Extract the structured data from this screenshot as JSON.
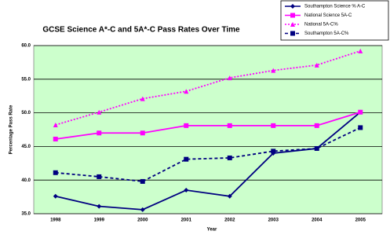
{
  "chart_data": {
    "type": "line",
    "title": "GCSE Science A*-C and 5A*-C Pass Rates Over Time",
    "x_label": "Year",
    "y_label": "Percentage Pass Rate",
    "categories": [
      "1998",
      "1999",
      "2000",
      "2001",
      "2002",
      "2003",
      "2004",
      "2005"
    ],
    "series": [
      {
        "name": "Southampton Science % A-C",
        "color": "#000080",
        "dash": "solid",
        "marker": "diamond",
        "values": [
          37.6,
          36.1,
          35.6,
          38.5,
          37.6,
          44.0,
          44.7,
          50.1
        ]
      },
      {
        "name": "National Science 5A-C",
        "color": "#ff00ff",
        "dash": "solid",
        "marker": "square",
        "values": [
          46.1,
          47.0,
          47.0,
          48.1,
          48.1,
          48.1,
          48.1,
          50.1
        ]
      },
      {
        "name": "National 5A-C%",
        "color": "#ff00ff",
        "dash": "dotted",
        "marker": "triangle",
        "values": [
          48.2,
          50.1,
          52.1,
          53.2,
          55.2,
          56.3,
          57.1,
          59.2
        ]
      },
      {
        "name": "Southampton 5A-C%",
        "color": "#000080",
        "dash": "dashed",
        "marker": "square",
        "values": [
          41.1,
          40.5,
          39.8,
          43.1,
          43.3,
          44.3,
          44.7,
          47.8
        ]
      }
    ],
    "ylim": [
      35,
      60
    ],
    "yticks": [
      {
        "value": 35,
        "label": "35.0"
      },
      {
        "value": 40,
        "label": "40.0"
      },
      {
        "value": 45,
        "label": "45.0"
      },
      {
        "value": 50,
        "label": "50.0"
      },
      {
        "value": 55,
        "label": "55.0"
      },
      {
        "value": 60,
        "label": "60.0"
      }
    ],
    "grid": true,
    "plot_background": "#ccffcc",
    "legend_position": "top-right"
  }
}
